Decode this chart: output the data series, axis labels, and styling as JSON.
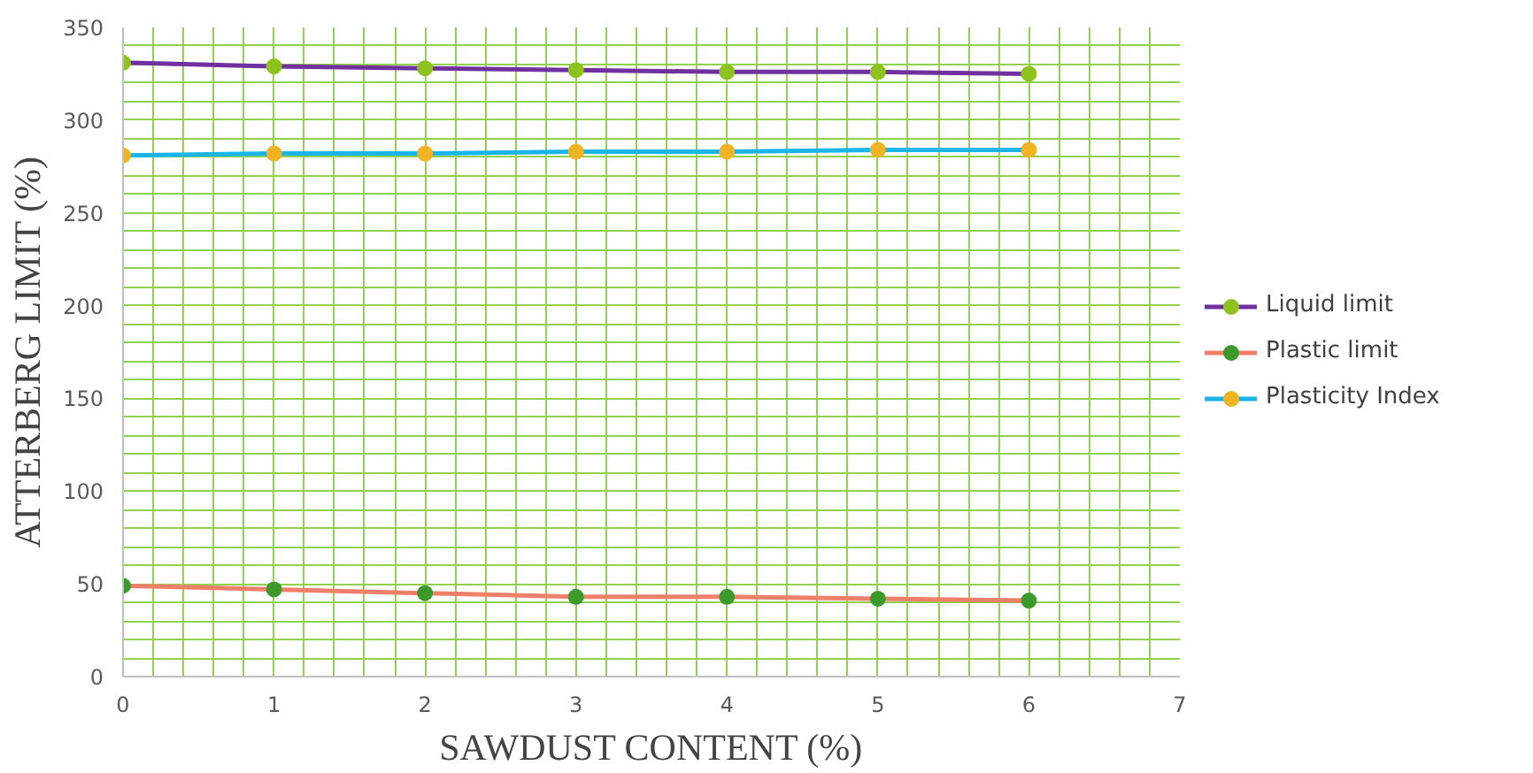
{
  "chart_data": {
    "type": "line",
    "xlabel": "SAWDUST CONTENT (%)",
    "ylabel": "ATTERBERG LIMIT (%)",
    "x": [
      0,
      1,
      2,
      3,
      4,
      5,
      6
    ],
    "series": [
      {
        "name": "Liquid limit",
        "color": "#7030a0",
        "colors": [
          "#8dc21f",
          "#8dc21f",
          "#8dc21f",
          "#8dc21f",
          "#8dc21f",
          "#8dc21f",
          "#8dc21f"
        ],
        "values": [
          331,
          329,
          328,
          327,
          326,
          326,
          325
        ]
      },
      {
        "name": "Plastic limit",
        "color": "#f07f6a",
        "colors": [
          "#3c9a2c",
          "#3c9a2c",
          "#3c9a2c",
          "#3c9a2c",
          "#3c9a2c",
          "#3c9a2c",
          "#3c9a2c"
        ],
        "values": [
          49,
          47,
          45,
          43,
          43,
          42,
          41
        ]
      },
      {
        "name": "Plasticity Index",
        "color": "#19b4e8",
        "colors": [
          "#f0b323",
          "#f0b323",
          "#f0b323",
          "#f0b323",
          "#f0b323",
          "#f0b323",
          "#f0b323"
        ],
        "values": [
          281,
          282,
          282,
          283,
          283,
          284,
          284
        ]
      }
    ],
    "xlim": [
      0,
      7
    ],
    "xticks": [
      0,
      1,
      2,
      3,
      4,
      5,
      6,
      7
    ],
    "ylim": [
      0,
      350
    ],
    "yticks": [
      0,
      50,
      100,
      150,
      200,
      250,
      300,
      350
    ],
    "grid": true,
    "legend": "right",
    "marker": "circle",
    "line_style": "solid"
  }
}
